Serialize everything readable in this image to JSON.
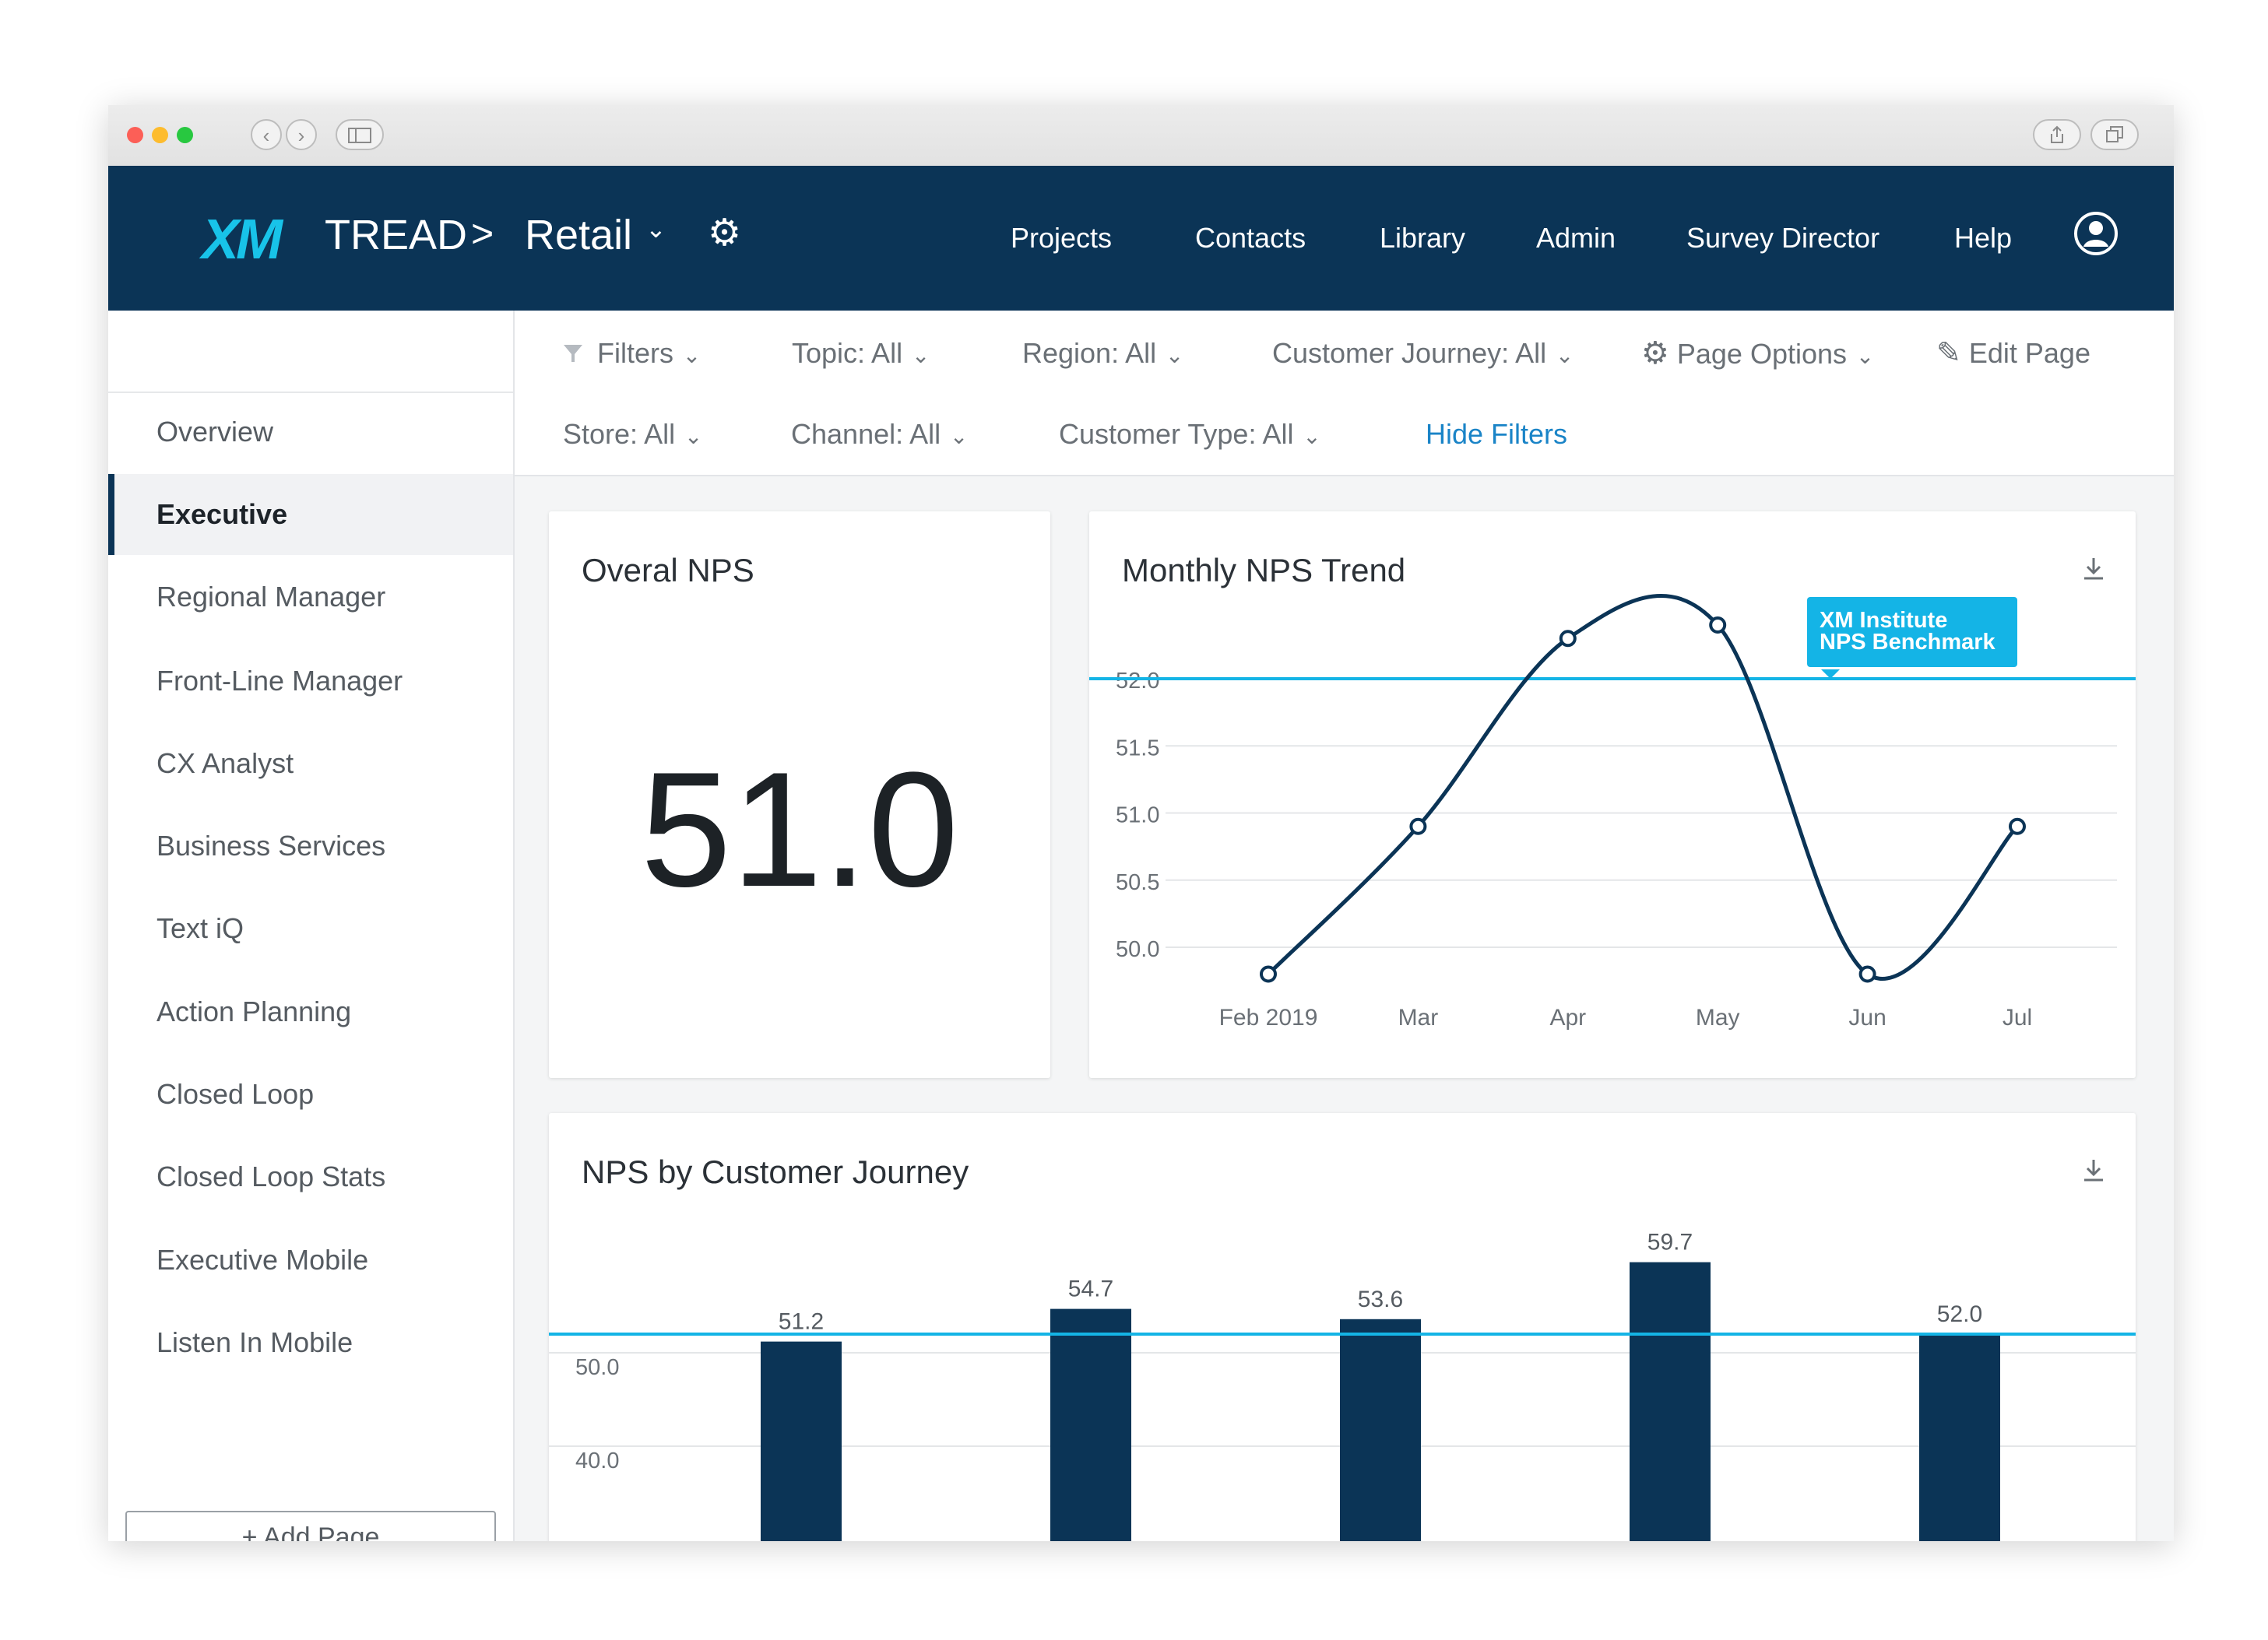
{
  "browser": {
    "buttons": {
      "back": "‹",
      "forward": "›"
    }
  },
  "header": {
    "logo": "XM",
    "brand": "TREAD",
    "breadcrumb_separator": ">",
    "project": "Retail",
    "nav": [
      "Projects",
      "Contacts",
      "Library",
      "Admin",
      "Survey Director",
      "Help"
    ]
  },
  "sidebar": {
    "items": [
      {
        "label": "Overview",
        "active": false
      },
      {
        "label": "Executive",
        "active": true
      },
      {
        "label": "Regional Manager",
        "active": false
      },
      {
        "label": "Front-Line Manager",
        "active": false
      },
      {
        "label": "CX Analyst",
        "active": false
      },
      {
        "label": "Business Services",
        "active": false
      },
      {
        "label": "Text iQ",
        "active": false
      },
      {
        "label": "Action Planning",
        "active": false
      },
      {
        "label": "Closed Loop",
        "active": false
      },
      {
        "label": "Closed Loop Stats",
        "active": false
      },
      {
        "label": "Executive Mobile",
        "active": false
      },
      {
        "label": "Listen In Mobile",
        "active": false
      }
    ],
    "add_page": "+ Add Page"
  },
  "filters": {
    "filters_label": "Filters",
    "topic": "Topic:  All",
    "region": "Region:  All",
    "customer_journey": "Customer Journey:  All",
    "page_options": "Page Options",
    "edit_page": "Edit Page",
    "store": "Store:  All",
    "channel": "Channel:  All",
    "customer_type": "Customer Type:  All",
    "hide_filters": "Hide Filters"
  },
  "cards": {
    "overall": {
      "title": "Overal NPS",
      "value": "51.0"
    },
    "trend": {
      "title": "Monthly NPS Trend",
      "benchmark_label_line1": "XM Institute",
      "benchmark_label_line2": "NPS Benchmark"
    },
    "journey": {
      "title": "NPS by Customer Journey"
    }
  },
  "colors": {
    "nav_bg": "#0b3456",
    "accent": "#18c3e9",
    "bar": "#0b3456",
    "benchmark": "#14b4e6",
    "link": "#1a84c7"
  },
  "chart_data": [
    {
      "type": "line",
      "title": "Monthly NPS Trend",
      "x": [
        "Feb 2019",
        "Mar",
        "Apr",
        "May",
        "Jun",
        "Jul"
      ],
      "values": [
        49.8,
        50.9,
        52.3,
        52.4,
        49.8,
        50.9
      ],
      "ylim": [
        50.0,
        52.0
      ],
      "yticks": [
        "52.0",
        "51.5",
        "51.0",
        "50.5",
        "50.0"
      ],
      "benchmark": {
        "value": 52.0,
        "label": "XM Institute NPS Benchmark"
      },
      "grid": true
    },
    {
      "type": "bar",
      "title": "NPS by Customer Journey",
      "values": [
        51.2,
        54.7,
        53.6,
        59.7,
        52.0
      ],
      "labels": [
        "51.2",
        "54.7",
        "53.6",
        "59.7",
        "52.0"
      ],
      "yticks": [
        "50.0",
        "40.0"
      ],
      "benchmark": {
        "value": 52.0
      },
      "grid": true
    }
  ]
}
